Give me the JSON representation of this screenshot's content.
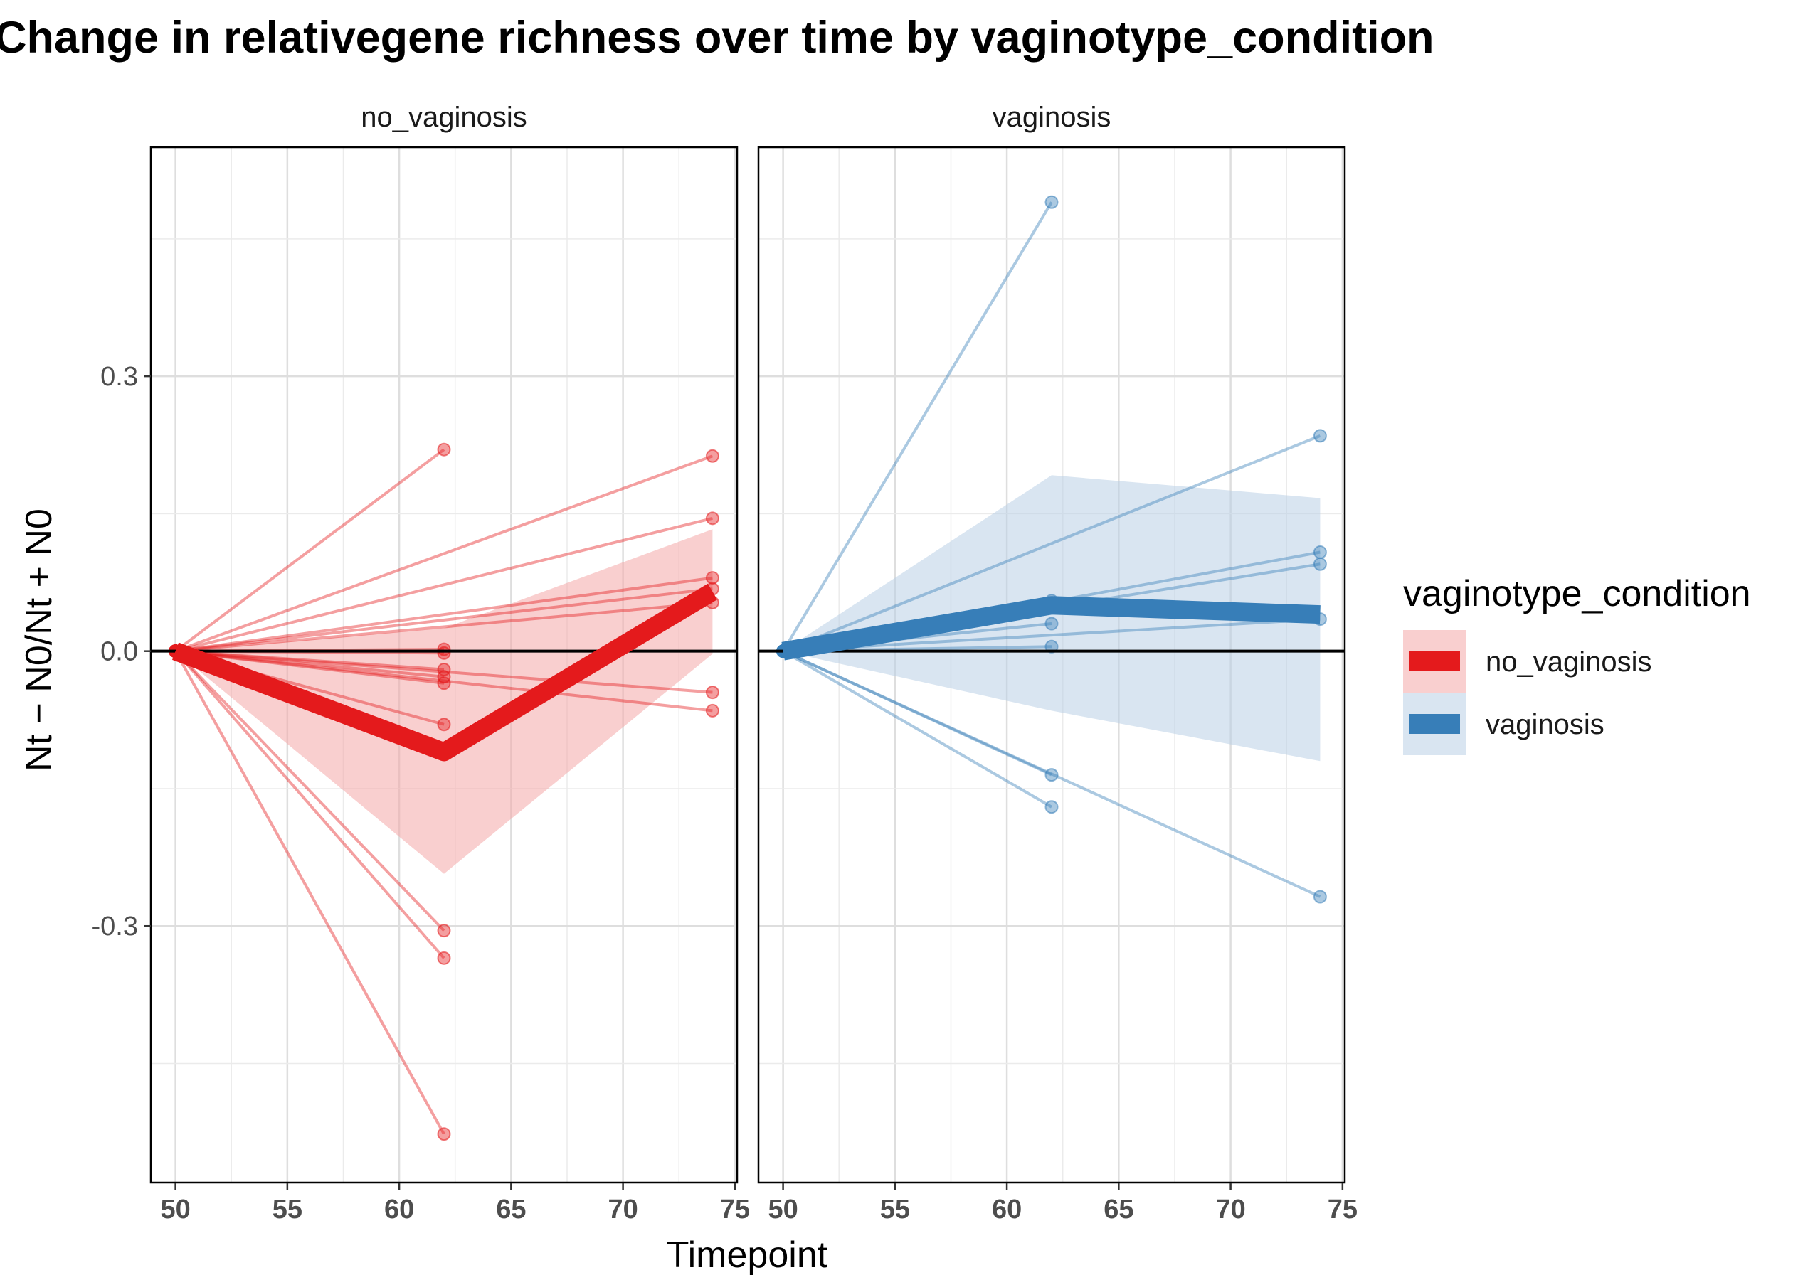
{
  "chart_data": {
    "type": "line",
    "title": "Change in relativegene richness over time by vaginotype_condition",
    "xlabel": "Timepoint",
    "ylabel": "Nt − N0/Nt + N0",
    "x_ticks": [
      50,
      55,
      60,
      65,
      70,
      75
    ],
    "y_ticks": [
      -0.3,
      0.0,
      0.3
    ],
    "y_tick_labels": [
      "-0.3",
      "0.0",
      "0.3"
    ],
    "xlim": [
      48.9,
      75.1
    ],
    "ylim": [
      -0.58,
      0.55
    ],
    "grid": true,
    "reference_line_y": 0,
    "legend": {
      "title": "vaginotype_condition",
      "placement": "right",
      "entries": [
        "no_vaginosis",
        "vaginosis"
      ]
    },
    "panels": [
      {
        "name": "no_vaginosis",
        "color": "#E41A1C",
        "ribbon_color": "#F4A7A8",
        "individual_lines": [
          [
            [
              50,
              0
            ],
            [
              62,
              0.22
            ]
          ],
          [
            [
              50,
              0
            ],
            [
              62,
              0.002
            ]
          ],
          [
            [
              50,
              0
            ],
            [
              62,
              -0.002
            ]
          ],
          [
            [
              50,
              0
            ],
            [
              62,
              -0.02
            ]
          ],
          [
            [
              50,
              0
            ],
            [
              62,
              -0.028
            ]
          ],
          [
            [
              50,
              0
            ],
            [
              62,
              -0.035
            ]
          ],
          [
            [
              50,
              0
            ],
            [
              62,
              -0.08
            ]
          ],
          [
            [
              50,
              0
            ],
            [
              62,
              -0.305
            ]
          ],
          [
            [
              50,
              0
            ],
            [
              62,
              -0.335
            ]
          ],
          [
            [
              50,
              0
            ],
            [
              62,
              -0.527
            ]
          ],
          [
            [
              50,
              0
            ],
            [
              74,
              0.213
            ]
          ],
          [
            [
              50,
              0
            ],
            [
              74,
              0.145
            ]
          ],
          [
            [
              50,
              0
            ],
            [
              74,
              0.08
            ]
          ],
          [
            [
              50,
              0
            ],
            [
              74,
              0.068
            ]
          ],
          [
            [
              50,
              0
            ],
            [
              74,
              0.053
            ]
          ],
          [
            [
              50,
              0
            ],
            [
              74,
              -0.045
            ]
          ],
          [
            [
              50,
              0
            ],
            [
              74,
              -0.065
            ]
          ]
        ],
        "mean_line": {
          "x": [
            50,
            62,
            74
          ],
          "y": [
            0,
            -0.11,
            0.065
          ]
        },
        "ribbon": {
          "x": [
            50,
            62,
            74
          ],
          "lower": [
            0,
            -0.243,
            -0.003
          ],
          "upper": [
            0,
            0.025,
            0.133
          ]
        }
      },
      {
        "name": "vaginosis",
        "color": "#377EB8",
        "ribbon_color": "#B9CFE5",
        "individual_lines": [
          [
            [
              50,
              0
            ],
            [
              62,
              0.49
            ]
          ],
          [
            [
              50,
              0
            ],
            [
              62,
              0.055
            ]
          ],
          [
            [
              50,
              0
            ],
            [
              62,
              0.03
            ]
          ],
          [
            [
              50,
              0
            ],
            [
              62,
              0.005
            ]
          ],
          [
            [
              50,
              0
            ],
            [
              62,
              -0.135
            ]
          ],
          [
            [
              50,
              0
            ],
            [
              62,
              -0.17
            ]
          ],
          [
            [
              50,
              0
            ],
            [
              74,
              0.235
            ]
          ],
          [
            [
              50,
              0
            ],
            [
              74,
              0.108
            ]
          ],
          [
            [
              50,
              0
            ],
            [
              74,
              0.095
            ]
          ],
          [
            [
              50,
              0
            ],
            [
              74,
              0.035
            ]
          ],
          [
            [
              50,
              0
            ],
            [
              74,
              -0.268
            ]
          ]
        ],
        "mean_line": {
          "x": [
            50,
            62,
            74
          ],
          "y": [
            0,
            0.05,
            0.04
          ]
        },
        "ribbon": {
          "x": [
            50,
            62,
            74
          ],
          "lower": [
            0,
            -0.065,
            -0.12
          ],
          "upper": [
            0,
            0.192,
            0.167
          ]
        }
      }
    ]
  }
}
